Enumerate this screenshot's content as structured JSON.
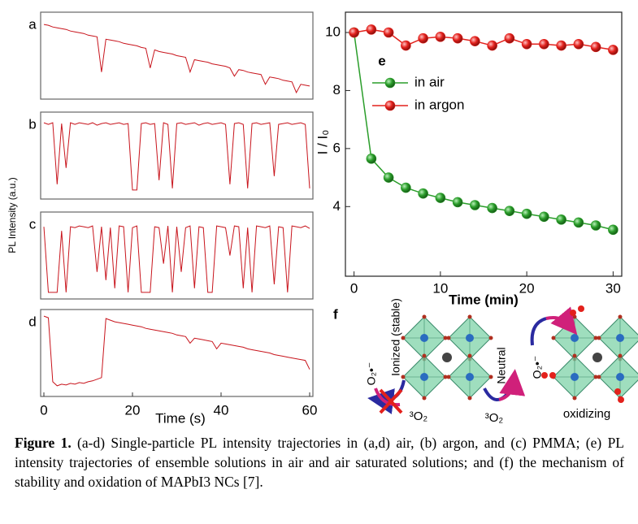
{
  "chart_data": [
    {
      "type": "line",
      "xlabel": "Time (s)",
      "ylabel": "PL Intensity (a.u.)",
      "xlim": [
        0,
        60
      ],
      "xticks": [
        0,
        20,
        40,
        60
      ],
      "ylim": [
        0,
        100
      ],
      "x": [
        0,
        1,
        2,
        3,
        4,
        5,
        6,
        7,
        8,
        9,
        10,
        11,
        12,
        13,
        14,
        15,
        16,
        17,
        18,
        19,
        20,
        21,
        22,
        23,
        24,
        25,
        26,
        27,
        28,
        29,
        30,
        31,
        32,
        33,
        34,
        35,
        36,
        37,
        38,
        39,
        40,
        41,
        42,
        43,
        44,
        45,
        46,
        47,
        48,
        49,
        50,
        51,
        52,
        53,
        54,
        55,
        56,
        57,
        58,
        59,
        60
      ],
      "series": [
        {
          "name": "a",
          "color": "#c8141c",
          "values": [
            88,
            87,
            85,
            84,
            83,
            82,
            80,
            79,
            78,
            77,
            75,
            74,
            73,
            30,
            70,
            69,
            68,
            67,
            65,
            64,
            63,
            62,
            60,
            59,
            35,
            57,
            55,
            54,
            53,
            52,
            50,
            49,
            48,
            30,
            45,
            44,
            43,
            42,
            40,
            39,
            38,
            37,
            35,
            25,
            33,
            32,
            30,
            29,
            28,
            27,
            15,
            24,
            23,
            22,
            20,
            19,
            18,
            5,
            15,
            14,
            13
          ]
        },
        {
          "name": "b",
          "color": "#c8141c",
          "values": [
            90,
            88,
            90,
            15,
            89,
            35,
            90,
            88,
            90,
            89,
            88,
            90,
            87,
            89,
            90,
            88,
            89,
            90,
            88,
            89,
            8,
            8,
            89,
            90,
            88,
            89,
            20,
            90,
            88,
            10,
            89,
            90,
            88,
            89,
            90,
            87,
            89,
            90,
            88,
            89,
            90,
            88,
            15,
            89,
            90,
            88,
            10,
            89,
            90,
            88,
            89,
            90,
            25,
            88,
            89,
            90,
            88,
            89,
            90,
            88,
            10
          ]
        },
        {
          "name": "c",
          "color": "#c8141c",
          "values": [
            85,
            5,
            5,
            5,
            80,
            5,
            85,
            84,
            86,
            85,
            84,
            86,
            30,
            85,
            20,
            84,
            10,
            86,
            85,
            5,
            84,
            86,
            5,
            5,
            5,
            85,
            84,
            40,
            86,
            5,
            85,
            30,
            84,
            86,
            10,
            85,
            84,
            5,
            5,
            86,
            85,
            84,
            50,
            86,
            85,
            10,
            84,
            5,
            86,
            85,
            84,
            86,
            15,
            85,
            84,
            5,
            86,
            85,
            84,
            86,
            83
          ]
        },
        {
          "name": "d",
          "color": "#c8141c",
          "values": [
            95,
            93,
            15,
            10,
            12,
            11,
            13,
            12,
            14,
            13,
            15,
            16,
            18,
            20,
            92,
            90,
            88,
            87,
            86,
            85,
            84,
            83,
            82,
            80,
            79,
            78,
            77,
            76,
            75,
            74,
            72,
            71,
            70,
            62,
            68,
            67,
            66,
            65,
            64,
            55,
            62,
            61,
            60,
            59,
            58,
            57,
            55,
            54,
            53,
            52,
            51,
            50,
            48,
            47,
            46,
            45,
            44,
            43,
            42,
            41,
            30
          ]
        }
      ]
    },
    {
      "type": "line",
      "annotation": "e",
      "xlabel": "Time (min)",
      "ylabel": "I / I₀",
      "xlim": [
        -1,
        31
      ],
      "xticks": [
        0,
        10,
        20,
        30
      ],
      "ylim": [
        1.6,
        10.7
      ],
      "yticks": [
        4,
        6,
        8,
        10
      ],
      "legend": "upper left",
      "x": [
        0,
        2,
        4,
        6,
        8,
        10,
        12,
        14,
        16,
        18,
        20,
        22,
        24,
        26,
        28,
        30
      ],
      "series": [
        {
          "name": "in air",
          "color": "#2a9d2a",
          "values": [
            10,
            5.65,
            5.0,
            4.65,
            4.45,
            4.3,
            4.15,
            4.05,
            3.95,
            3.85,
            3.75,
            3.65,
            3.55,
            3.45,
            3.35,
            3.2
          ]
        },
        {
          "name": "in argon",
          "color": "#e3211c",
          "values": [
            10,
            10.1,
            10.0,
            9.55,
            9.8,
            9.85,
            9.8,
            9.7,
            9.55,
            9.8,
            9.6,
            9.6,
            9.55,
            9.6,
            9.5,
            9.4
          ]
        }
      ]
    }
  ],
  "diagram": {
    "label": "f",
    "ionized": "Ionized (stable)",
    "neutral": "Neutral",
    "superoxide": "O₂•⁻",
    "triplet": "³O₂",
    "oxidizing": "oxidizing"
  },
  "caption": {
    "label": "Figure 1.",
    "text": " (a-d) Single-particle PL intensity trajectories in (a,d) air, (b) argon, and (c) PMMA; (e) PL intensity trajectories of ensemble solutions in air and air saturated solutions; and (f) the mechanism of stability and oxidation of MAPbI3 NCs [7]."
  }
}
